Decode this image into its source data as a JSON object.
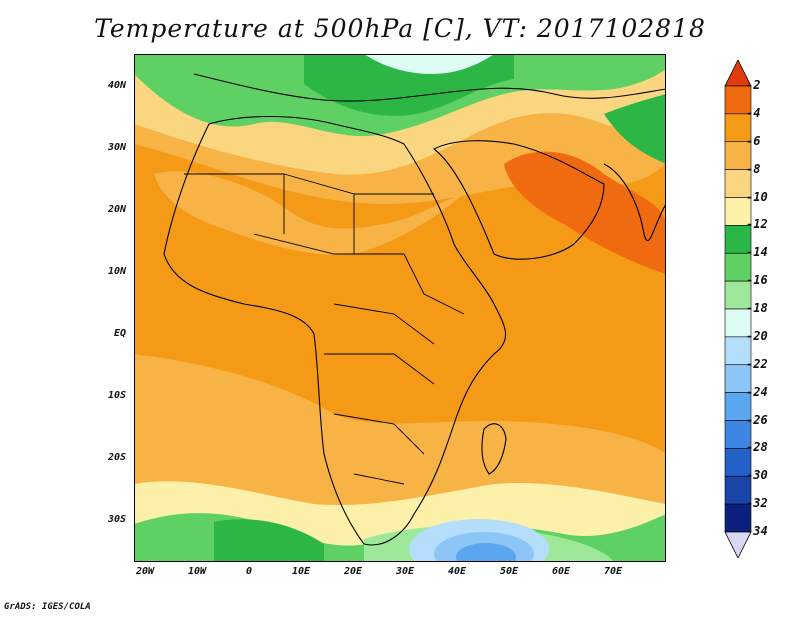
{
  "title": "Temperature at 500hPa [C], VT: 2017102818",
  "footer": "GrADS: IGES/COLA",
  "lat_ticks": [
    "40N",
    "30N",
    "20N",
    "10N",
    "EQ",
    "10S",
    "20S",
    "30S"
  ],
  "lon_ticks": [
    "20W",
    "10W",
    "0",
    "10E",
    "20E",
    "30E",
    "40E",
    "50E",
    "60E",
    "70E"
  ],
  "colorbar_levels": [
    "-2",
    "-4",
    "-6",
    "-8",
    "-10",
    "-12",
    "-14",
    "-16",
    "-18",
    "-20",
    "-22",
    "-24",
    "-26",
    "-28",
    "-30",
    "-32",
    "-34"
  ],
  "colorbar_colors": [
    "#e23b0b",
    "#f06a10",
    "#f49a16",
    "#f7b345",
    "#fbd680",
    "#fdf0a8",
    "#2bb646",
    "#5fd063",
    "#9ee89a",
    "#dcfcf4",
    "#b5defc",
    "#8cc5f6",
    "#5aa6ef",
    "#3d86e2",
    "#2361c9",
    "#1a44a8",
    "#0b1f7e",
    "#d8d8f4"
  ],
  "map": {
    "lon_range": [
      -22,
      80
    ],
    "lat_range": [
      -36,
      45
    ],
    "field": "temperature_500hPa_celsius"
  }
}
